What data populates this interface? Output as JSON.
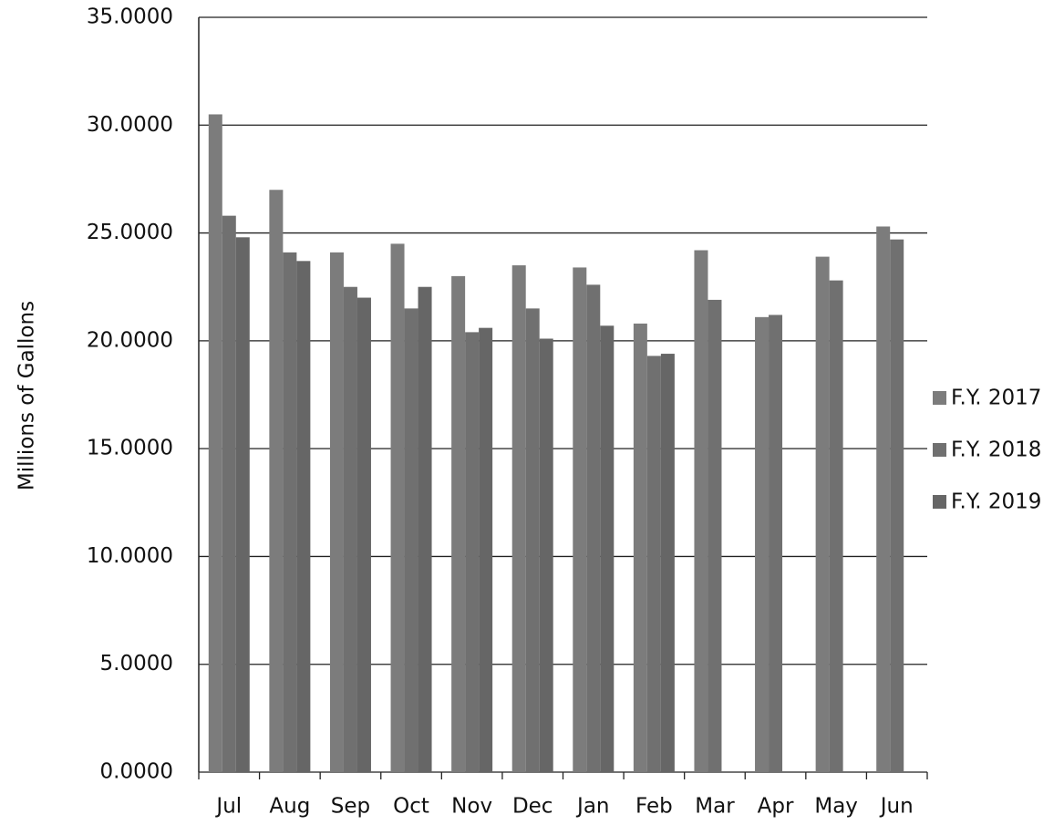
{
  "chart_data": {
    "type": "bar",
    "y_label": "Millions of  Gallons",
    "categories": [
      "Jul",
      "Aug",
      "Sep",
      "Oct",
      "Nov",
      "Dec",
      "Jan",
      "Feb",
      "Mar",
      "Apr",
      "May",
      "Jun"
    ],
    "series": [
      {
        "name": "F.Y. 2017",
        "color": "#7c7c7c",
        "values": [
          30.5,
          27.0,
          24.1,
          24.5,
          23.0,
          23.5,
          23.4,
          20.8,
          24.2,
          21.1,
          23.9,
          25.3
        ]
      },
      {
        "name": "F.Y. 2018",
        "color": "#707070",
        "values": [
          25.8,
          24.1,
          22.5,
          21.5,
          20.4,
          21.5,
          22.6,
          19.3,
          21.9,
          21.2,
          22.8,
          24.7
        ]
      },
      {
        "name": "F.Y. 2019",
        "color": "#666666",
        "values": [
          24.8,
          23.7,
          22.0,
          22.5,
          20.6,
          20.1,
          20.7,
          19.4,
          null,
          null,
          null,
          null
        ]
      }
    ],
    "ylim": [
      0,
      35
    ],
    "yticks": [
      {
        "value": 0,
        "label": "0.0000"
      },
      {
        "value": 5,
        "label": "5.0000"
      },
      {
        "value": 10,
        "label": "10.0000"
      },
      {
        "value": 15,
        "label": "15.0000"
      },
      {
        "value": 20,
        "label": "20.0000"
      },
      {
        "value": 25,
        "label": "25.0000"
      },
      {
        "value": 30,
        "label": "30.0000"
      },
      {
        "value": 35,
        "label": "35.0000"
      }
    ],
    "grid": true,
    "legend": "right"
  }
}
